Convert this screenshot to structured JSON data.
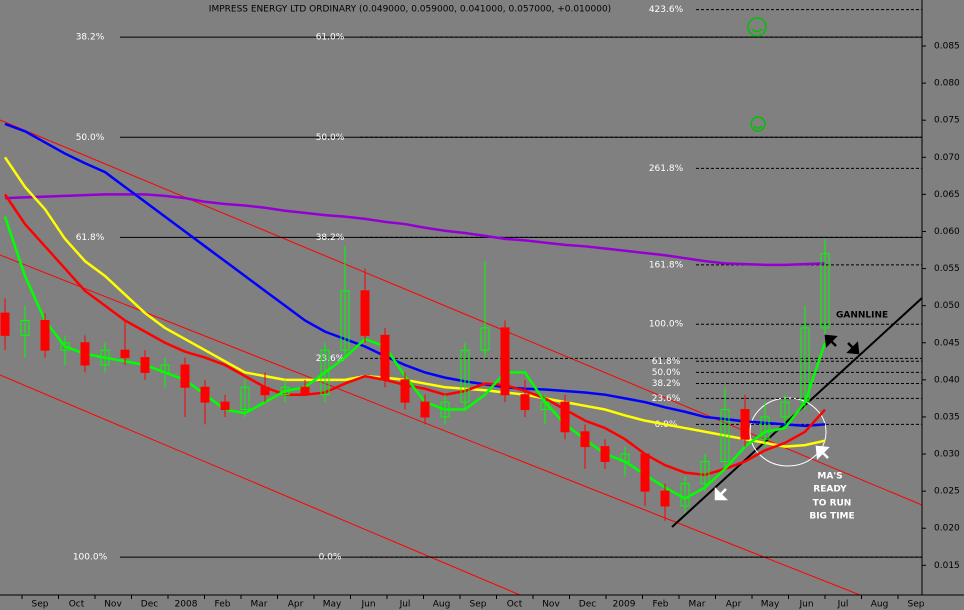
{
  "chart_data": {
    "type": "candlestick",
    "title": "IMPRESS ENERGY LTD ORDINARY (0.049000, 0.059000, 0.041000, 0.057000, +0.010000)",
    "x_labels": [
      "Sep",
      "Oct",
      "Nov",
      "Dec",
      "2008",
      "Feb",
      "Mar",
      "Apr",
      "May",
      "Jun",
      "Jul",
      "Aug",
      "Sep",
      "Oct",
      "Nov",
      "Dec",
      "2009",
      "Feb",
      "Mar",
      "Apr",
      "May",
      "Jun",
      "Jul",
      "Aug",
      "Sep"
    ],
    "ylim": [
      0.011,
      0.0912
    ],
    "yticks": [
      {
        "value": 0.015,
        "label": "0.015"
      },
      {
        "value": 0.02,
        "label": "0.020"
      },
      {
        "value": 0.025,
        "label": "0.025"
      },
      {
        "value": 0.03,
        "label": "0.030"
      },
      {
        "value": 0.035,
        "label": "0.035"
      },
      {
        "value": 0.04,
        "label": "0.040"
      },
      {
        "value": 0.045,
        "label": "0.045"
      },
      {
        "value": 0.05,
        "label": "0.050"
      },
      {
        "value": 0.055,
        "label": "0.055"
      },
      {
        "value": 0.06,
        "label": "0.060"
      },
      {
        "value": 0.065,
        "label": "0.065"
      },
      {
        "value": 0.07,
        "label": "0.070"
      },
      {
        "value": 0.075,
        "label": "0.075"
      },
      {
        "value": 0.08,
        "label": "0.080"
      },
      {
        "value": 0.085,
        "label": "0.085"
      }
    ],
    "up_color": "#00ff00",
    "down_color": "#ff0000",
    "candles": [
      [
        0.049,
        0.051,
        0.044,
        0.046
      ],
      [
        0.046,
        0.05,
        0.043,
        0.048
      ],
      [
        0.048,
        0.049,
        0.043,
        0.044
      ],
      [
        0.044,
        0.046,
        0.042,
        0.045
      ],
      [
        0.045,
        0.046,
        0.041,
        0.042
      ],
      [
        0.042,
        0.045,
        0.041,
        0.044
      ],
      [
        0.044,
        0.048,
        0.042,
        0.043
      ],
      [
        0.043,
        0.044,
        0.04,
        0.041
      ],
      [
        0.041,
        0.043,
        0.039,
        0.042
      ],
      [
        0.042,
        0.043,
        0.035,
        0.039
      ],
      [
        0.039,
        0.04,
        0.034,
        0.037
      ],
      [
        0.037,
        0.038,
        0.035,
        0.036
      ],
      [
        0.036,
        0.04,
        0.035,
        0.039
      ],
      [
        0.039,
        0.041,
        0.037,
        0.038
      ],
      [
        0.038,
        0.04,
        0.037,
        0.039
      ],
      [
        0.039,
        0.04,
        0.038,
        0.038
      ],
      [
        0.038,
        0.045,
        0.037,
        0.044
      ],
      [
        0.044,
        0.058,
        0.043,
        0.052
      ],
      [
        0.052,
        0.055,
        0.045,
        0.046
      ],
      [
        0.046,
        0.047,
        0.039,
        0.04
      ],
      [
        0.04,
        0.041,
        0.036,
        0.037
      ],
      [
        0.037,
        0.038,
        0.034,
        0.035
      ],
      [
        0.035,
        0.038,
        0.034,
        0.037
      ],
      [
        0.037,
        0.045,
        0.036,
        0.044
      ],
      [
        0.044,
        0.056,
        0.043,
        0.047
      ],
      [
        0.047,
        0.048,
        0.037,
        0.038
      ],
      [
        0.038,
        0.04,
        0.035,
        0.036
      ],
      [
        0.036,
        0.038,
        0.034,
        0.037
      ],
      [
        0.037,
        0.038,
        0.032,
        0.033
      ],
      [
        0.033,
        0.034,
        0.028,
        0.031
      ],
      [
        0.031,
        0.032,
        0.028,
        0.029
      ],
      [
        0.029,
        0.031,
        0.027,
        0.03
      ],
      [
        0.03,
        0.03,
        0.023,
        0.025
      ],
      [
        0.025,
        0.026,
        0.021,
        0.023
      ],
      [
        0.023,
        0.027,
        0.022,
        0.026
      ],
      [
        0.026,
        0.03,
        0.025,
        0.029
      ],
      [
        0.029,
        0.039,
        0.028,
        0.036
      ],
      [
        0.036,
        0.038,
        0.031,
        0.032
      ],
      [
        0.032,
        0.037,
        0.031,
        0.035
      ],
      [
        0.035,
        0.038,
        0.034,
        0.037
      ],
      [
        0.037,
        0.05,
        0.036,
        0.047
      ],
      [
        0.047,
        0.059,
        0.046,
        0.057
      ]
    ],
    "series": [
      {
        "color": "#9400d3",
        "values": [
          0.0645,
          0.0646,
          0.0647,
          0.0648,
          0.0649,
          0.065,
          0.065,
          0.065,
          0.0648,
          0.0645,
          0.064,
          0.0637,
          0.0635,
          0.0632,
          0.0628,
          0.0625,
          0.0622,
          0.062,
          0.0617,
          0.0613,
          0.061,
          0.0605,
          0.0601,
          0.0598,
          0.0594,
          0.059,
          0.0588,
          0.0585,
          0.0582,
          0.058,
          0.0577,
          0.0574,
          0.0571,
          0.0568,
          0.0564,
          0.056,
          0.0557,
          0.0556,
          0.0555,
          0.0555,
          0.0556,
          0.0557
        ]
      },
      {
        "color": "#0000ff",
        "values": [
          0.0745,
          0.0735,
          0.072,
          0.0705,
          0.0692,
          0.068,
          0.066,
          0.064,
          0.062,
          0.06,
          0.058,
          0.056,
          0.054,
          0.052,
          0.05,
          0.048,
          0.0465,
          0.0455,
          0.0445,
          0.0432,
          0.042,
          0.041,
          0.0403,
          0.0398,
          0.0394,
          0.039,
          0.0388,
          0.0387,
          0.0385,
          0.0383,
          0.038,
          0.0375,
          0.037,
          0.0363,
          0.0357,
          0.035,
          0.0347,
          0.0344,
          0.0342,
          0.034,
          0.0338,
          0.034
        ]
      },
      {
        "color": "#ffff00",
        "values": [
          0.07,
          0.066,
          0.063,
          0.059,
          0.056,
          0.054,
          0.0515,
          0.049,
          0.047,
          0.0455,
          0.044,
          0.0425,
          0.041,
          0.0405,
          0.04,
          0.04,
          0.04,
          0.04,
          0.0405,
          0.0403,
          0.04,
          0.0395,
          0.039,
          0.0388,
          0.0386,
          0.0383,
          0.038,
          0.0375,
          0.037,
          0.0365,
          0.036,
          0.0352,
          0.0345,
          0.034,
          0.0335,
          0.033,
          0.0325,
          0.032,
          0.0315,
          0.031,
          0.0312,
          0.0318
        ]
      },
      {
        "color": "#ff0000",
        "values": [
          0.065,
          0.061,
          0.058,
          0.055,
          0.052,
          0.05,
          0.048,
          0.0465,
          0.045,
          0.0438,
          0.043,
          0.042,
          0.0405,
          0.039,
          0.038,
          0.038,
          0.0383,
          0.0395,
          0.0405,
          0.04,
          0.0393,
          0.0388,
          0.038,
          0.0385,
          0.0395,
          0.0393,
          0.0385,
          0.0375,
          0.036,
          0.0345,
          0.0335,
          0.032,
          0.03,
          0.0285,
          0.0275,
          0.0272,
          0.028,
          0.029,
          0.0305,
          0.0315,
          0.033,
          0.036
        ]
      },
      {
        "color": "#00ff00",
        "values": [
          0.062,
          0.054,
          0.048,
          0.0445,
          0.0435,
          0.043,
          0.0425,
          0.042,
          0.041,
          0.04,
          0.038,
          0.036,
          0.0355,
          0.037,
          0.0385,
          0.039,
          0.041,
          0.043,
          0.0455,
          0.0445,
          0.0405,
          0.037,
          0.036,
          0.036,
          0.038,
          0.041,
          0.041,
          0.037,
          0.034,
          0.032,
          0.03,
          0.029,
          0.0272,
          0.0255,
          0.024,
          0.0255,
          0.028,
          0.031,
          0.033,
          0.0335,
          0.037,
          0.045
        ]
      }
    ],
    "fib_left": [
      {
        "value": 0.0862,
        "label": "38.2%"
      },
      {
        "value": 0.0727,
        "label": "50.0%"
      },
      {
        "value": 0.0592,
        "label": "61.8%"
      },
      {
        "value": 0.0161,
        "label": "100.0%"
      }
    ],
    "fib_mid": [
      {
        "value": 0.0862,
        "label": "61.0%"
      },
      {
        "value": 0.0727,
        "label": "50.0%"
      },
      {
        "value": 0.0592,
        "label": "38.2%"
      },
      {
        "value": 0.0429,
        "label": "23.6%"
      },
      {
        "value": 0.0161,
        "label": "0.0%"
      }
    ],
    "fib_right": [
      {
        "value": 0.0899,
        "label": "423.6%"
      },
      {
        "value": 0.0685,
        "label": "261.8%"
      },
      {
        "value": 0.0555,
        "label": "161.8%"
      },
      {
        "value": 0.0475,
        "label": "100.0%"
      },
      {
        "value": 0.0425,
        "label": "61.8%"
      },
      {
        "value": 0.041,
        "label": "50.0%"
      },
      {
        "value": 0.0395,
        "label": "38.2%"
      },
      {
        "value": 0.0375,
        "label": "23.6%"
      },
      {
        "value": 0.034,
        "label": "0.0%"
      }
    ],
    "annotations": [
      "GANNLINE",
      "MA'S",
      "READY",
      "TO RUN",
      "BIG TIME"
    ]
  }
}
